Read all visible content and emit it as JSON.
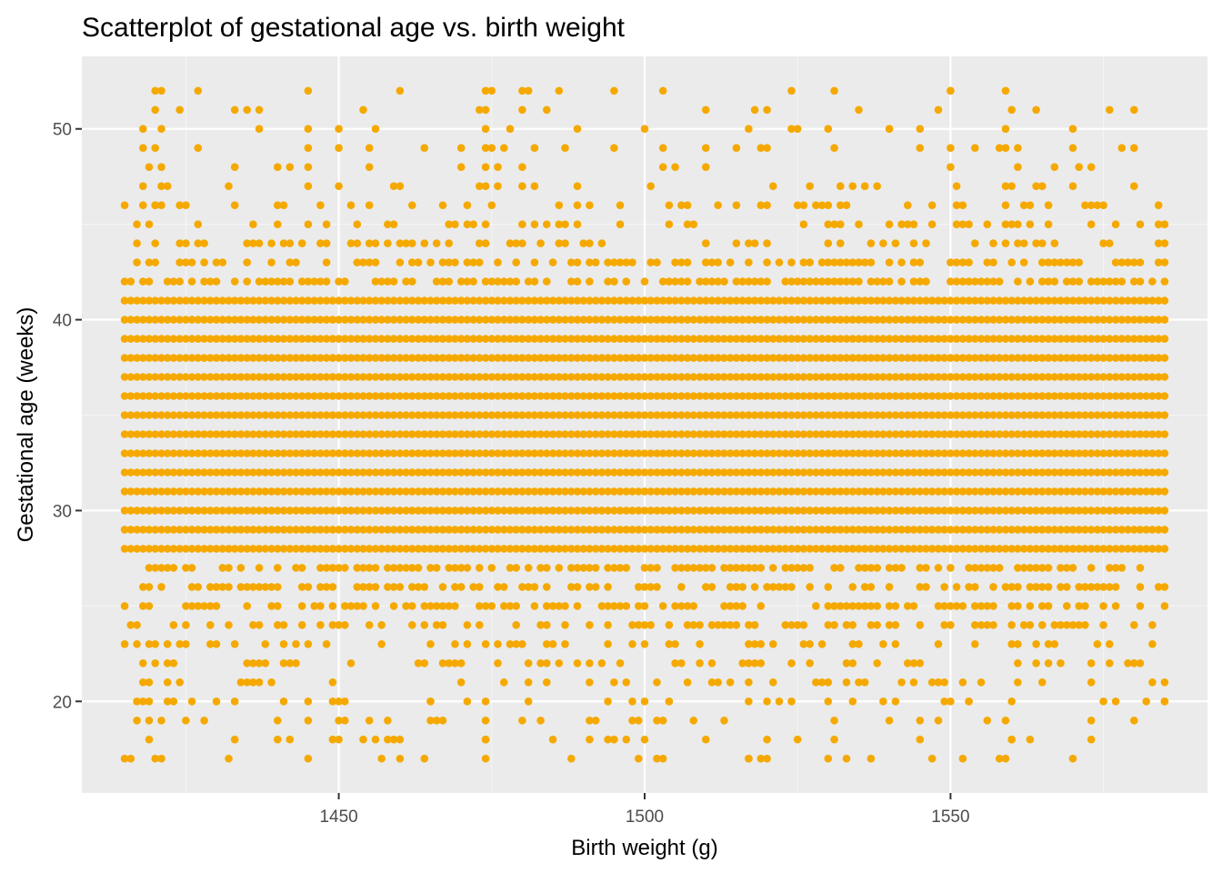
{
  "chart_data": {
    "type": "scatter",
    "title": "Scatterplot of gestational age vs. birth weight",
    "xlabel": "Birth weight (g)",
    "ylabel": "Gestational age (weeks)",
    "xlim": [
      1408,
      1592
    ],
    "ylim": [
      15.2,
      53.8
    ],
    "x_ticks": [
      1450,
      1500,
      1550
    ],
    "x_minor_ticks": [
      1425,
      1475,
      1525,
      1575
    ],
    "y_ticks": [
      20,
      30,
      40,
      50
    ],
    "y_minor_ticks": [
      25,
      35,
      45
    ],
    "x_tick_labels": [
      "1450",
      "1500",
      "1550"
    ],
    "y_tick_labels": [
      "20",
      "30",
      "40",
      "50"
    ],
    "grid": true,
    "legend": "none",
    "colors": {
      "panel_background": "#EBEBEB",
      "grid_major": "#FFFFFF",
      "grid_minor": "#F5F5F5",
      "point": "#F5A900"
    },
    "x_range_observed": [
      1415,
      1585
    ],
    "y_range_observed": [
      17,
      52
    ],
    "dense_band_weeks": [
      28,
      41
    ],
    "points": [
      [
        1420,
        52
      ],
      [
        1421,
        52
      ],
      [
        1425,
        46
      ],
      [
        1433,
        51
      ],
      [
        1445,
        52
      ],
      [
        1460,
        52
      ],
      [
        1474,
        52
      ],
      [
        1480,
        52
      ],
      [
        1503,
        52
      ],
      [
        1531,
        52
      ],
      [
        1550,
        52
      ],
      [
        1559,
        52
      ],
      [
        1420,
        51
      ],
      [
        1474,
        51
      ],
      [
        1480,
        51
      ],
      [
        1510,
        51
      ],
      [
        1520,
        51
      ],
      [
        1535,
        51
      ],
      [
        1560,
        51
      ],
      [
        1580,
        51
      ],
      [
        1418,
        50
      ],
      [
        1421,
        50
      ],
      [
        1445,
        50
      ],
      [
        1450,
        50
      ],
      [
        1474,
        50
      ],
      [
        1500,
        50
      ],
      [
        1517,
        50
      ],
      [
        1540,
        50
      ],
      [
        1545,
        50
      ],
      [
        1559,
        50
      ],
      [
        1420,
        49
      ],
      [
        1445,
        49
      ],
      [
        1450,
        49
      ],
      [
        1474,
        49
      ],
      [
        1475,
        49
      ],
      [
        1503,
        49
      ],
      [
        1510,
        49
      ],
      [
        1520,
        49
      ],
      [
        1531,
        49
      ],
      [
        1545,
        49
      ],
      [
        1550,
        49
      ],
      [
        1559,
        49
      ],
      [
        1419,
        48
      ],
      [
        1440,
        48
      ],
      [
        1445,
        48
      ],
      [
        1470,
        48
      ],
      [
        1474,
        48
      ],
      [
        1480,
        48
      ],
      [
        1503,
        48
      ],
      [
        1510,
        48
      ],
      [
        1550,
        48
      ],
      [
        1418,
        47
      ],
      [
        1421,
        47
      ],
      [
        1432,
        47
      ],
      [
        1445,
        47
      ],
      [
        1450,
        47
      ],
      [
        1459,
        47
      ],
      [
        1474,
        47
      ],
      [
        1480,
        47
      ],
      [
        1489,
        47
      ],
      [
        1501,
        47
      ],
      [
        1532,
        47
      ],
      [
        1538,
        47
      ],
      [
        1560,
        47
      ],
      [
        1565,
        47
      ],
      [
        1580,
        47
      ],
      [
        1415,
        46
      ],
      [
        1420,
        46
      ],
      [
        1424,
        46
      ],
      [
        1440,
        46
      ],
      [
        1455,
        46
      ],
      [
        1462,
        46
      ],
      [
        1486,
        46
      ],
      [
        1504,
        46
      ],
      [
        1519,
        46
      ],
      [
        1526,
        46
      ],
      [
        1552,
        46
      ],
      [
        1572,
        46
      ],
      [
        1584,
        46
      ],
      [
        1416,
        17
      ],
      [
        1420,
        17
      ],
      [
        1421,
        17
      ],
      [
        1445,
        17
      ],
      [
        1460,
        17
      ],
      [
        1474,
        17
      ],
      [
        1488,
        17
      ],
      [
        1503,
        17
      ],
      [
        1517,
        17
      ],
      [
        1530,
        17
      ],
      [
        1559,
        17
      ],
      [
        1570,
        17
      ],
      [
        1419,
        18
      ],
      [
        1440,
        18
      ],
      [
        1450,
        18
      ],
      [
        1460,
        18
      ],
      [
        1474,
        18
      ],
      [
        1500,
        18
      ],
      [
        1510,
        18
      ],
      [
        1520,
        18
      ],
      [
        1531,
        18
      ],
      [
        1545,
        18
      ],
      [
        1560,
        18
      ],
      [
        1419,
        19
      ],
      [
        1421,
        19
      ],
      [
        1425,
        19
      ],
      [
        1440,
        19
      ],
      [
        1445,
        19
      ],
      [
        1455,
        19
      ],
      [
        1474,
        19
      ],
      [
        1480,
        19
      ],
      [
        1503,
        19
      ],
      [
        1531,
        19
      ],
      [
        1540,
        19
      ],
      [
        1556,
        19
      ],
      [
        1559,
        19
      ],
      [
        1573,
        19
      ],
      [
        1580,
        19
      ],
      [
        1418,
        20
      ],
      [
        1423,
        20
      ],
      [
        1433,
        20
      ],
      [
        1445,
        20
      ],
      [
        1451,
        20
      ],
      [
        1465,
        20
      ],
      [
        1474,
        20
      ],
      [
        1500,
        20
      ],
      [
        1504,
        20
      ],
      [
        1517,
        20
      ],
      [
        1530,
        20
      ],
      [
        1553,
        20
      ],
      [
        1560,
        20
      ],
      [
        1577,
        20
      ],
      [
        1585,
        20
      ]
    ]
  }
}
